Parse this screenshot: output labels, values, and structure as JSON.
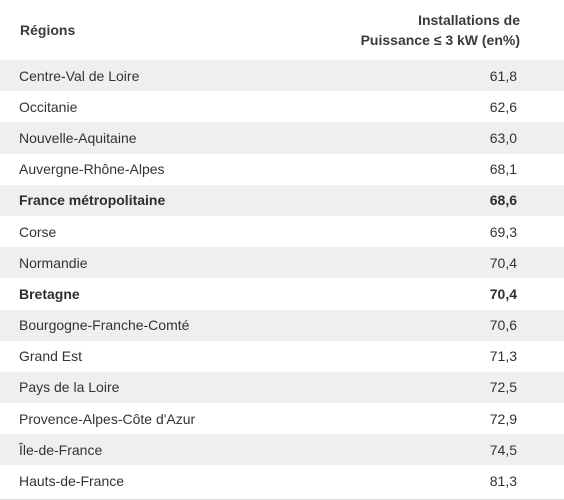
{
  "header": {
    "col_region": "Régions",
    "col_value_line1": "Installations de",
    "col_value_line2": "Puissance ≤ 3 kW (en%)"
  },
  "rows": [
    {
      "region": "Centre-Val de Loire",
      "value": "61,8",
      "bold": false
    },
    {
      "region": "Occitanie",
      "value": "62,6",
      "bold": false
    },
    {
      "region": "Nouvelle-Aquitaine",
      "value": "63,0",
      "bold": false
    },
    {
      "region": "Auvergne-Rhône-Alpes",
      "value": "68,1",
      "bold": false
    },
    {
      "region": "France métropolitaine",
      "value": "68,6",
      "bold": true
    },
    {
      "region": "Corse",
      "value": "69,3",
      "bold": false
    },
    {
      "region": "Normandie",
      "value": "70,4",
      "bold": false
    },
    {
      "region": "Bretagne",
      "value": "70,4",
      "bold": true
    },
    {
      "region": "Bourgogne-Franche-Comté",
      "value": "70,6",
      "bold": false
    },
    {
      "region": "Grand Est",
      "value": "71,3",
      "bold": false
    },
    {
      "region": "Pays de la Loire",
      "value": "72,5",
      "bold": false
    },
    {
      "region": "Provence-Alpes-Côte d'Azur",
      "value": "72,9",
      "bold": false
    },
    {
      "region": "Île-de-France",
      "value": "74,5",
      "bold": false
    },
    {
      "region": "Hauts-de-France",
      "value": "81,3",
      "bold": false
    }
  ]
}
